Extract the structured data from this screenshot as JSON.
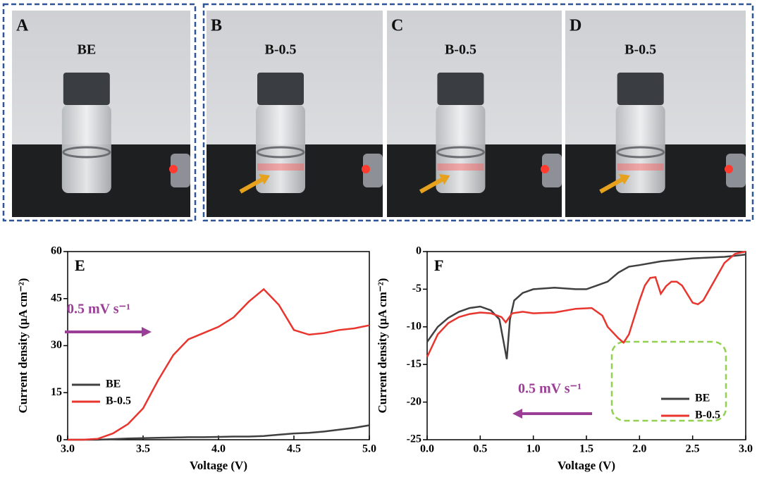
{
  "panels": [
    {
      "label": "A",
      "caption": "BE"
    },
    {
      "label": "B",
      "caption": "B-0.5"
    },
    {
      "label": "C",
      "caption": "B-0.5"
    },
    {
      "label": "D",
      "caption": "B-0.5"
    }
  ],
  "chart_data": [
    {
      "type": "line",
      "panel_label": "E",
      "xlabel": "Voltage (V)",
      "ylabel": "Current density (μA cm⁻²)",
      "annotation": "0.5 mV s⁻¹",
      "annotation_color": "#9b3f96",
      "legend": "lower left",
      "xlim": [
        3,
        5
      ],
      "xticks": [
        {
          "value": 3,
          "label": "3.0"
        },
        {
          "value": 3.5,
          "label": "3.5"
        },
        {
          "value": 4,
          "label": "4.0"
        },
        {
          "value": 4.5,
          "label": "4.5"
        },
        {
          "value": 5,
          "label": "5.0"
        }
      ],
      "ylim": [
        0,
        60
      ],
      "yticks": [
        0,
        15,
        30,
        45,
        60
      ],
      "series": [
        {
          "name": "BE",
          "color": "#404040",
          "x": [
            3.0,
            3.1,
            3.2,
            3.3,
            3.4,
            3.5,
            3.6,
            3.7,
            3.8,
            3.9,
            4.0,
            4.1,
            4.2,
            4.3,
            4.4,
            4.5,
            4.6,
            4.7,
            4.8,
            4.9,
            5.0
          ],
          "values": [
            0,
            0,
            0,
            0.2,
            0.4,
            0.5,
            0.6,
            0.7,
            0.8,
            0.8,
            0.9,
            1,
            1,
            1.2,
            1.6,
            2,
            2.2,
            2.6,
            3.2,
            3.8,
            4.6
          ]
        },
        {
          "name": "B-0.5",
          "color": "#e8352e",
          "x": [
            3.0,
            3.1,
            3.2,
            3.3,
            3.4,
            3.5,
            3.6,
            3.7,
            3.8,
            3.9,
            4.0,
            4.1,
            4.2,
            4.3,
            4.4,
            4.5,
            4.6,
            4.7,
            4.8,
            4.9,
            5.0
          ],
          "values": [
            0,
            0,
            0.3,
            2,
            5,
            10,
            19,
            27,
            32,
            34,
            36,
            39,
            44,
            48,
            43,
            35,
            33.5,
            34,
            35,
            35.5,
            36.5
          ]
        }
      ]
    },
    {
      "type": "line",
      "panel_label": "F",
      "xlabel": "Voltage (V)",
      "ylabel": "Current density (μA cm⁻²)",
      "annotation": "0.5 mV s⁻¹",
      "annotation_color": "#9b3f96",
      "legend": "lower right",
      "xlim": [
        0,
        3
      ],
      "xticks": [
        {
          "value": 0,
          "label": "0.0"
        },
        {
          "value": 0.5,
          "label": "0.5"
        },
        {
          "value": 1,
          "label": "1.0"
        },
        {
          "value": 1.5,
          "label": "1.5"
        },
        {
          "value": 2,
          "label": "2.0"
        },
        {
          "value": 2.5,
          "label": "2.5"
        },
        {
          "value": 3,
          "label": "3.0"
        }
      ],
      "ylim": [
        -25,
        0
      ],
      "yticks": [
        -25,
        -20,
        -15,
        -10,
        -5,
        0
      ],
      "series": [
        {
          "name": "BE",
          "color": "#404040",
          "x": [
            0,
            0.1,
            0.2,
            0.3,
            0.4,
            0.5,
            0.6,
            0.68,
            0.72,
            0.75,
            0.78,
            0.82,
            0.9,
            1.0,
            1.2,
            1.4,
            1.5,
            1.6,
            1.7,
            1.8,
            1.9,
            2.0,
            2.2,
            2.5,
            2.8,
            3.0
          ],
          "values": [
            -12,
            -10,
            -8.8,
            -8,
            -7.5,
            -7.3,
            -7.8,
            -9,
            -12,
            -14.3,
            -9,
            -6.5,
            -5.5,
            -5,
            -4.8,
            -5,
            -5,
            -4.5,
            -4,
            -2.8,
            -2,
            -1.8,
            -1.3,
            -0.9,
            -0.7,
            -0.4
          ]
        },
        {
          "name": "B-0.5",
          "color": "#e8352e",
          "x": [
            0,
            0.1,
            0.2,
            0.3,
            0.4,
            0.5,
            0.6,
            0.7,
            0.74,
            0.8,
            0.9,
            1.0,
            1.2,
            1.4,
            1.55,
            1.65,
            1.7,
            1.8,
            1.85,
            1.9,
            2.0,
            2.05,
            2.1,
            2.15,
            2.2,
            2.25,
            2.3,
            2.35,
            2.4,
            2.5,
            2.55,
            2.6,
            2.7,
            2.8,
            2.9,
            3.0
          ],
          "values": [
            -14,
            -11,
            -9.5,
            -8.7,
            -8.3,
            -8.1,
            -8.2,
            -8.7,
            -9.4,
            -8.2,
            -8,
            -8.2,
            -8.1,
            -7.6,
            -7.5,
            -8.5,
            -10,
            -11.5,
            -12.1,
            -11,
            -6.5,
            -4.5,
            -3.5,
            -3.4,
            -5.6,
            -4.6,
            -4,
            -4,
            -4.5,
            -6.8,
            -7,
            -6.5,
            -4,
            -1.5,
            -0.3,
            0
          ]
        }
      ]
    }
  ]
}
